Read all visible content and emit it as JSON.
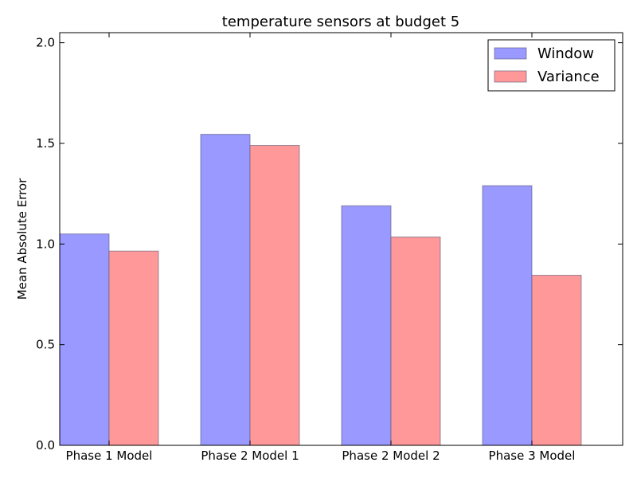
{
  "chart_data": {
    "type": "bar",
    "title": "temperature sensors at budget 5",
    "xlabel": "",
    "ylabel": "Mean Absolute Error",
    "categories": [
      "Phase 1 Model",
      "Phase 2 Model 1",
      "Phase 2 Model 2",
      "Phase 3 Model"
    ],
    "series": [
      {
        "name": "Window",
        "color": "#9999ff",
        "values": [
          1.05,
          1.545,
          1.19,
          1.29
        ]
      },
      {
        "name": "Variance",
        "color": "#ff9999",
        "values": [
          0.965,
          1.49,
          1.035,
          0.845
        ]
      }
    ],
    "ylim": [
      0,
      2.05
    ],
    "yticks": [
      "0.0",
      "0.5",
      "1.0",
      "1.5",
      "2.0"
    ],
    "grid": false,
    "legend_position": "top-right"
  }
}
